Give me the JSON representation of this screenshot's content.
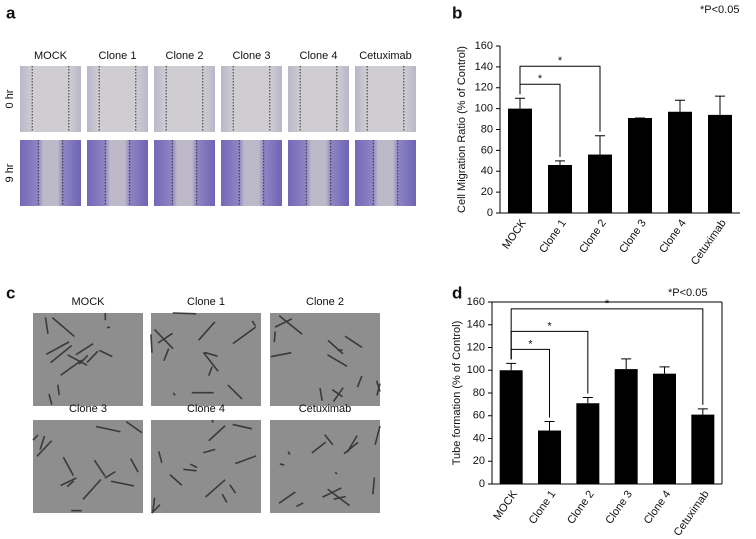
{
  "panel_labels": [
    "a",
    "b",
    "c",
    "d"
  ],
  "migration_images": {
    "columns": [
      "MOCK",
      "Clone 1",
      "Clone 2",
      "Clone 3",
      "Clone 4",
      "Cetuximab"
    ],
    "rows": [
      "0 hr",
      "9 hr"
    ]
  },
  "tube_images": {
    "labels": [
      "MOCK",
      "Clone 1",
      "Clone 2",
      "Clone 3",
      "Clone 4",
      "Cetuximab"
    ]
  },
  "chart_data": [
    {
      "type": "bar",
      "ylabel": "Cell Migration Ratio (% of Control)",
      "annotation": "*P<0.05",
      "categories": [
        "MOCK",
        "Clone 1",
        "Clone 2",
        "Clone 3",
        "Clone 4",
        "Cetuximab"
      ],
      "values": [
        100,
        46,
        56,
        91,
        97,
        94
      ],
      "errors": [
        10,
        4,
        18,
        0,
        11,
        18
      ],
      "color": "#000000",
      "ylim": [
        0,
        160
      ],
      "yticks": [
        0,
        20,
        40,
        60,
        80,
        100,
        120,
        140,
        160
      ],
      "frame": false,
      "comparisons": [
        {
          "categories": [
            "MOCK",
            "Clone 1"
          ],
          "label": "*"
        },
        {
          "categories": [
            "MOCK",
            "Clone 2"
          ],
          "label": "*"
        }
      ]
    },
    {
      "type": "bar",
      "ylabel": "Tube formation (% of Control)",
      "annotation": "*P<0.05",
      "categories": [
        "MOCK",
        "Clone 1",
        "Clone 2",
        "Clone 3",
        "Clone 4",
        "Cetuximab"
      ],
      "values": [
        100,
        47,
        71,
        101,
        97,
        61
      ],
      "errors": [
        6,
        8,
        5,
        9,
        6,
        5
      ],
      "color": "#000000",
      "ylim": [
        0,
        160
      ],
      "yticks": [
        0,
        20,
        40,
        60,
        80,
        100,
        120,
        140,
        160
      ],
      "frame": true,
      "comparisons": [
        {
          "categories": [
            "MOCK",
            "Clone 1"
          ],
          "label": "*"
        },
        {
          "categories": [
            "MOCK",
            "Clone 2"
          ],
          "label": "*"
        },
        {
          "categories": [
            "MOCK",
            "Cetuximab"
          ],
          "label": "*"
        }
      ]
    }
  ]
}
